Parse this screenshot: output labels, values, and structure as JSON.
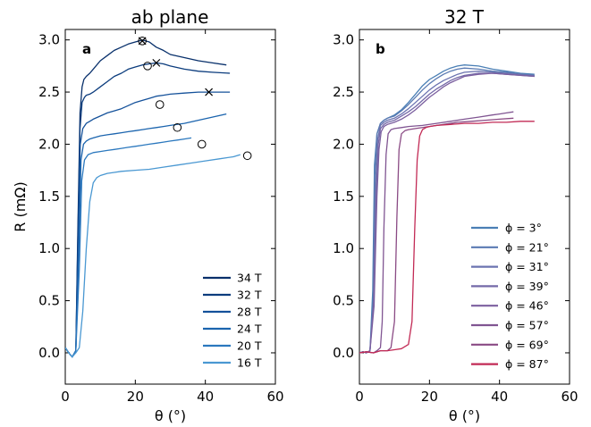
{
  "figure": {
    "background": "#ffffff"
  },
  "chart_data": [
    {
      "id": "a",
      "type": "line",
      "title": "ab plane",
      "panel_label": "a",
      "xlabel": "θ (°)",
      "ylabel": "R (mΩ)",
      "xlim": [
        0,
        60
      ],
      "ylim": [
        -0.3,
        3.1
      ],
      "xticks": [
        0,
        20,
        40,
        60
      ],
      "yticks": [
        0.0,
        0.5,
        1.0,
        1.5,
        2.0,
        2.5,
        3.0
      ],
      "xtick_labels": [
        "0",
        "20",
        "40",
        "60"
      ],
      "ytick_labels": [
        "0.0",
        "0.5",
        "1.0",
        "1.5",
        "2.0",
        "2.5",
        "3.0"
      ],
      "grid": false,
      "legend_position": "lower-right",
      "series": [
        {
          "name": "34 T",
          "color": "#08306b",
          "x": [
            0,
            1,
            2,
            3,
            3.6,
            4.2,
            4.8,
            5.3,
            6,
            7,
            8,
            10,
            12,
            14,
            16,
            18,
            20,
            22,
            24,
            26,
            28,
            30,
            34,
            38,
            42,
            46
          ],
          "y": [
            0.05,
            0.0,
            -0.04,
            0.02,
            1.2,
            2.3,
            2.55,
            2.62,
            2.65,
            2.68,
            2.72,
            2.8,
            2.85,
            2.9,
            2.93,
            2.96,
            2.98,
            3.0,
            2.98,
            2.93,
            2.9,
            2.86,
            2.83,
            2.8,
            2.78,
            2.76
          ]
        },
        {
          "name": "32 T",
          "color": "#0b3c7d",
          "x": [
            0,
            1,
            2,
            3,
            3.6,
            4.2,
            4.8,
            5.5,
            6,
            7,
            8,
            10,
            12,
            14,
            16,
            18,
            20,
            22,
            24,
            26,
            28,
            30,
            34,
            38,
            42,
            47
          ],
          "y": [
            0.05,
            0.0,
            -0.04,
            0.02,
            1.1,
            2.15,
            2.4,
            2.45,
            2.47,
            2.48,
            2.5,
            2.55,
            2.6,
            2.65,
            2.68,
            2.72,
            2.74,
            2.76,
            2.77,
            2.78,
            2.77,
            2.75,
            2.72,
            2.7,
            2.69,
            2.68
          ]
        },
        {
          "name": "28 T",
          "color": "#14519a",
          "x": [
            0,
            1,
            2,
            3,
            3.7,
            4.3,
            5,
            6,
            7,
            8,
            10,
            12,
            14,
            16,
            18,
            20,
            22,
            24,
            26,
            28,
            30,
            34,
            38,
            42,
            47
          ],
          "y": [
            0.05,
            0.0,
            -0.04,
            0.02,
            1.0,
            2.0,
            2.15,
            2.2,
            2.22,
            2.24,
            2.27,
            2.3,
            2.32,
            2.34,
            2.37,
            2.4,
            2.42,
            2.44,
            2.46,
            2.47,
            2.48,
            2.49,
            2.5,
            2.5,
            2.5
          ]
        },
        {
          "name": "24 T",
          "color": "#1b64ae",
          "x": [
            0,
            1,
            2,
            3,
            3.8,
            4.5,
            5.2,
            6,
            7,
            8,
            10,
            12,
            14,
            16,
            18,
            20,
            22,
            24,
            26,
            28,
            30,
            34,
            38,
            42,
            46
          ],
          "y": [
            0.05,
            0.0,
            -0.04,
            0.02,
            0.9,
            1.85,
            2.0,
            2.03,
            2.05,
            2.06,
            2.08,
            2.09,
            2.1,
            2.11,
            2.12,
            2.13,
            2.14,
            2.15,
            2.16,
            2.17,
            2.18,
            2.2,
            2.23,
            2.26,
            2.29
          ]
        },
        {
          "name": "20 T",
          "color": "#2b78be",
          "x": [
            0,
            1,
            2,
            3,
            4,
            4.7,
            5.5,
            6.5,
            8,
            10,
            12,
            14,
            16,
            18,
            20,
            22,
            24,
            26,
            28,
            30,
            32,
            34,
            36
          ],
          "y": [
            0.05,
            0.0,
            -0.04,
            0.02,
            0.8,
            1.65,
            1.85,
            1.9,
            1.92,
            1.93,
            1.94,
            1.95,
            1.96,
            1.97,
            1.98,
            1.99,
            2.0,
            2.01,
            2.02,
            2.03,
            2.04,
            2.05,
            2.06
          ]
        },
        {
          "name": "16 T",
          "color": "#4a98d2",
          "x": [
            0,
            1,
            2,
            3,
            4,
            5,
            6,
            7,
            8,
            9,
            10,
            12,
            14,
            16,
            20,
            24,
            28,
            32,
            36,
            40,
            44,
            48,
            50
          ],
          "y": [
            0.05,
            0.0,
            -0.04,
            0.0,
            0.05,
            0.4,
            1.0,
            1.45,
            1.63,
            1.68,
            1.7,
            1.72,
            1.73,
            1.74,
            1.75,
            1.76,
            1.78,
            1.8,
            1.82,
            1.84,
            1.86,
            1.88,
            1.9
          ]
        }
      ],
      "markers": [
        {
          "shape": "circle",
          "x": 22,
          "y": 2.99
        },
        {
          "shape": "x",
          "x": 22,
          "y": 2.99
        },
        {
          "shape": "circle",
          "x": 23.5,
          "y": 2.75
        },
        {
          "shape": "x",
          "x": 26,
          "y": 2.78
        },
        {
          "shape": "x",
          "x": 41,
          "y": 2.5
        },
        {
          "shape": "circle",
          "x": 27,
          "y": 2.38
        },
        {
          "shape": "circle",
          "x": 32,
          "y": 2.16
        },
        {
          "shape": "circle",
          "x": 39,
          "y": 2.0
        },
        {
          "shape": "circle",
          "x": 52,
          "y": 1.89
        }
      ]
    },
    {
      "id": "b",
      "type": "line",
      "title": "32 T",
      "panel_label": "b",
      "xlabel": "θ (°)",
      "ylabel": "",
      "xlim": [
        0,
        60
      ],
      "ylim": [
        -0.3,
        3.1
      ],
      "xticks": [
        0,
        20,
        40,
        60
      ],
      "yticks": [
        0.0,
        0.5,
        1.0,
        1.5,
        2.0,
        2.5,
        3.0
      ],
      "xtick_labels": [
        "0",
        "20",
        "40",
        "60"
      ],
      "ytick_labels": [
        "0.0",
        "0.5",
        "1.0",
        "1.5",
        "2.0",
        "2.5",
        "3.0"
      ],
      "grid": false,
      "legend_position": "lower-right",
      "series": [
        {
          "name": "ϕ  = 3°",
          "color": "#4a7fb5",
          "x": [
            0,
            1,
            2,
            3,
            3.8,
            4.3,
            5,
            6,
            7,
            8,
            10,
            12,
            14,
            16,
            18,
            20,
            22,
            24,
            26,
            28,
            30,
            34,
            38,
            42,
            46,
            50
          ],
          "y": [
            0.0,
            0.01,
            0.0,
            0.02,
            0.6,
            1.8,
            2.1,
            2.2,
            2.23,
            2.25,
            2.28,
            2.33,
            2.4,
            2.48,
            2.56,
            2.62,
            2.66,
            2.7,
            2.73,
            2.75,
            2.76,
            2.75,
            2.72,
            2.7,
            2.68,
            2.67
          ]
        },
        {
          "name": "ϕ  = 21°",
          "color": "#5a7ab2",
          "x": [
            0,
            1,
            2,
            3,
            3.9,
            4.4,
            5,
            6,
            7,
            8,
            10,
            12,
            14,
            16,
            18,
            20,
            22,
            24,
            26,
            28,
            30,
            34,
            38,
            42,
            46,
            50
          ],
          "y": [
            0.0,
            0.01,
            0.0,
            0.02,
            0.5,
            1.7,
            2.1,
            2.2,
            2.23,
            2.25,
            2.27,
            2.32,
            2.38,
            2.45,
            2.52,
            2.58,
            2.63,
            2.67,
            2.7,
            2.72,
            2.73,
            2.72,
            2.7,
            2.69,
            2.67,
            2.66
          ]
        },
        {
          "name": "ϕ  = 31°",
          "color": "#6b73b0",
          "x": [
            0,
            1,
            2,
            3,
            4,
            4.6,
            5.2,
            6,
            7,
            8,
            10,
            12,
            14,
            16,
            18,
            20,
            22,
            24,
            26,
            28,
            30,
            34,
            38,
            42,
            46,
            50
          ],
          "y": [
            0.0,
            0.01,
            0.0,
            0.02,
            0.5,
            1.6,
            2.05,
            2.18,
            2.21,
            2.23,
            2.25,
            2.29,
            2.34,
            2.4,
            2.46,
            2.52,
            2.57,
            2.61,
            2.64,
            2.67,
            2.69,
            2.7,
            2.69,
            2.68,
            2.67,
            2.66
          ]
        },
        {
          "name": "ϕ  = 39°",
          "color": "#7469a8",
          "x": [
            0,
            1,
            2,
            3,
            4.1,
            4.8,
            5.4,
            6,
            7,
            8,
            10,
            12,
            14,
            16,
            18,
            20,
            22,
            24,
            26,
            28,
            30,
            34,
            38,
            42,
            46,
            50
          ],
          "y": [
            0.0,
            0.01,
            0.0,
            0.02,
            0.5,
            1.55,
            2.0,
            2.15,
            2.19,
            2.21,
            2.23,
            2.27,
            2.31,
            2.36,
            2.42,
            2.48,
            2.53,
            2.57,
            2.61,
            2.64,
            2.66,
            2.68,
            2.68,
            2.67,
            2.66,
            2.65
          ]
        },
        {
          "name": "ϕ  = 46°",
          "color": "#7b5f9f",
          "x": [
            0,
            1,
            2,
            3,
            4.2,
            5,
            5.6,
            6.2,
            7,
            8,
            10,
            12,
            14,
            16,
            18,
            20,
            22,
            24,
            26,
            28,
            30,
            34,
            38,
            42,
            46,
            50
          ],
          "y": [
            0.0,
            0.01,
            0.0,
            0.02,
            0.45,
            1.5,
            1.95,
            2.12,
            2.17,
            2.19,
            2.21,
            2.24,
            2.28,
            2.33,
            2.39,
            2.45,
            2.5,
            2.55,
            2.59,
            2.62,
            2.65,
            2.67,
            2.68,
            2.67,
            2.66,
            2.65
          ]
        },
        {
          "name": "ϕ  = 57°",
          "color": "#805592",
          "x": [
            0,
            2,
            4,
            5,
            6,
            6.5,
            7,
            7.6,
            8.2,
            9,
            10,
            12,
            14,
            18,
            22,
            26,
            30,
            34,
            38,
            40,
            42,
            44
          ],
          "y": [
            0.0,
            0.01,
            0.0,
            0.02,
            0.05,
            0.3,
            1.2,
            1.9,
            2.1,
            2.14,
            2.15,
            2.16,
            2.17,
            2.18,
            2.2,
            2.22,
            2.24,
            2.26,
            2.28,
            2.29,
            2.3,
            2.31
          ]
        },
        {
          "name": "ϕ  = 69°",
          "color": "#8a4a84",
          "x": [
            0,
            2,
            4,
            6,
            8,
            9,
            10,
            10.7,
            11.3,
            12,
            13,
            14,
            16,
            20,
            24,
            28,
            32,
            36,
            40,
            44
          ],
          "y": [
            0.0,
            0.01,
            0.0,
            0.02,
            0.02,
            0.05,
            0.3,
            1.3,
            1.95,
            2.1,
            2.13,
            2.14,
            2.15,
            2.17,
            2.19,
            2.21,
            2.22,
            2.23,
            2.24,
            2.25
          ]
        },
        {
          "name": "ϕ  = 87°",
          "color": "#c22a55",
          "x": [
            0,
            2,
            4,
            6,
            8,
            10,
            12,
            14,
            15,
            15.8,
            16.5,
            17.2,
            18,
            19,
            20,
            22,
            26,
            30,
            34,
            38,
            42,
            46,
            50
          ],
          "y": [
            0.0,
            0.01,
            0.0,
            0.02,
            0.02,
            0.03,
            0.04,
            0.08,
            0.3,
            1.2,
            1.85,
            2.08,
            2.14,
            2.16,
            2.17,
            2.18,
            2.19,
            2.2,
            2.2,
            2.21,
            2.21,
            2.22,
            2.22
          ]
        }
      ]
    }
  ]
}
